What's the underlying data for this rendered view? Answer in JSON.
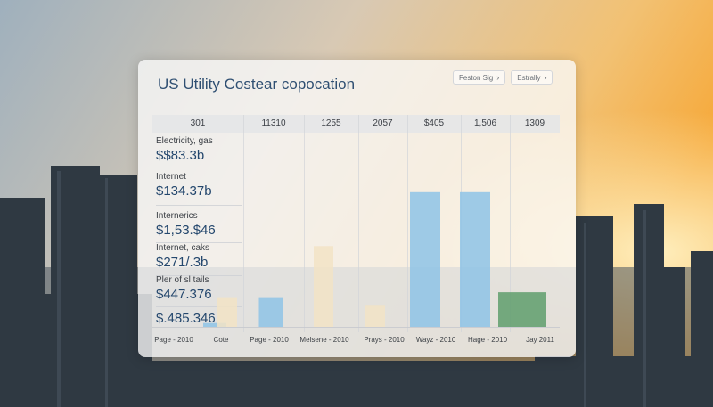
{
  "chart": {
    "title": "US Utility Costear copocation",
    "buttons": [
      {
        "label": "Feston Sig",
        "chevron": "›"
      },
      {
        "label": "Estrally",
        "chevron": "›"
      }
    ]
  },
  "chart_data": {
    "type": "bar",
    "title": "US Utility Costear copocation",
    "header_values": [
      "301",
      "11310",
      "1255",
      "2057",
      "$405",
      "1,506",
      "1309"
    ],
    "rows": [
      {
        "label": "Electricity, gas",
        "value": "$$83.3b"
      },
      {
        "label": "Internet",
        "value": "$134.37b"
      },
      {
        "label": "Internerics",
        "value": "$1,53.$46"
      },
      {
        "label": "Internet, caks",
        "value": "$271/.3b"
      },
      {
        "label": "Pler of sl tails",
        "value": "$447.376"
      },
      {
        "label": "",
        "value": "$.485.346"
      }
    ],
    "categories": [
      "Page - 2010",
      "Cote",
      "Page - 2010",
      "Melsene - 2010",
      "Prays - 2010",
      "Wayz - 2010",
      "Hage - 2010",
      "Jay 2011"
    ],
    "values": [
      2,
      15,
      15,
      42,
      11,
      70,
      70,
      18
    ],
    "ylim": [
      0,
      100
    ],
    "colors": {
      "bar_light": "#f2e3c6",
      "bar_blue": "#8ec3e6",
      "bar_green": "#5f9d6c",
      "title": "#2f4f72"
    }
  }
}
